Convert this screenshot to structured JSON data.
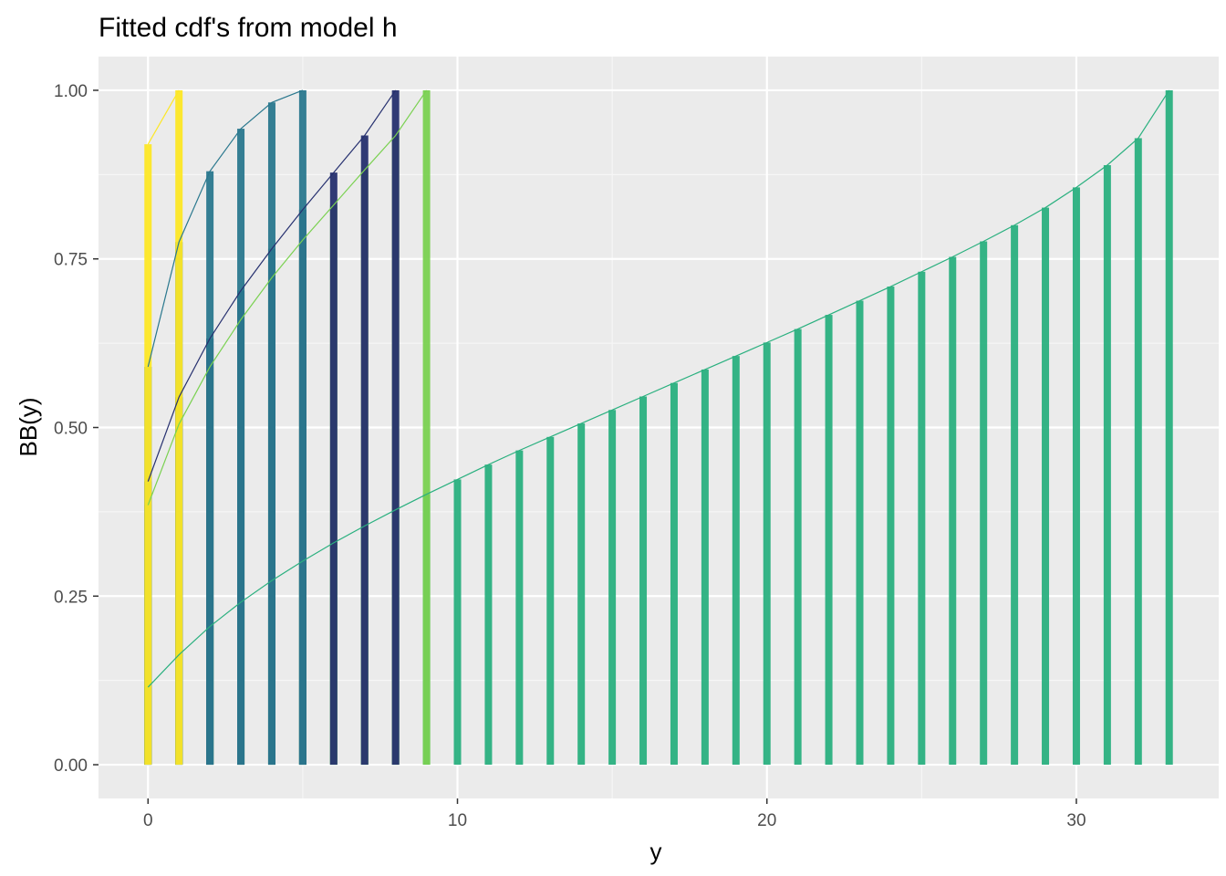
{
  "chart_data": {
    "type": "bar",
    "title": "Fitted cdf's from model h",
    "xlabel": "y",
    "ylabel": "BB(y)",
    "xlim": [
      -1.6,
      34.6
    ],
    "ylim": [
      -0.05,
      1.05
    ],
    "x_ticks": [
      0,
      10,
      20,
      30
    ],
    "y_ticks": [
      0,
      0.25,
      0.5,
      0.75,
      1
    ],
    "x_tick_labels": [
      "0",
      "10",
      "20",
      "30"
    ],
    "y_tick_labels": [
      "0.00",
      "0.25",
      "0.50",
      "0.75",
      "1.00"
    ],
    "grid": true,
    "legend": "none",
    "series": [
      {
        "color": "#2ab07f",
        "x": [
          0,
          1,
          2,
          3,
          4,
          5,
          6,
          7,
          8,
          9,
          10,
          11,
          12,
          13,
          14,
          15,
          16,
          17,
          18,
          19,
          20,
          21,
          22,
          23,
          24,
          25,
          26,
          27,
          28,
          29,
          30,
          31,
          32,
          33
        ],
        "values": [
          0.115,
          0.163,
          0.205,
          0.241,
          0.273,
          0.302,
          0.329,
          0.354,
          0.378,
          0.401,
          0.423,
          0.445,
          0.466,
          0.486,
          0.506,
          0.526,
          0.546,
          0.566,
          0.586,
          0.606,
          0.626,
          0.646,
          0.667,
          0.688,
          0.709,
          0.731,
          0.753,
          0.776,
          0.8,
          0.826,
          0.856,
          0.889,
          0.929,
          1.0
        ]
      },
      {
        "color": "#7ad151",
        "x": [
          0,
          1,
          2,
          3,
          4,
          5,
          6,
          7,
          8,
          9
        ],
        "values": [
          0.385,
          0.505,
          0.59,
          0.66,
          0.722,
          0.778,
          0.83,
          0.882,
          0.933,
          1.0
        ]
      },
      {
        "color": "#26306f",
        "x": [
          0,
          1,
          2,
          3,
          4,
          5,
          6,
          7,
          8
        ],
        "values": [
          0.42,
          0.545,
          0.632,
          0.703,
          0.765,
          0.823,
          0.878,
          0.933,
          1.0
        ]
      },
      {
        "color": "#2a788e",
        "x": [
          0,
          1,
          2,
          3,
          4,
          5
        ],
        "values": [
          0.59,
          0.775,
          0.88,
          0.943,
          0.982,
          1.0
        ]
      },
      {
        "color": "#fde725",
        "x": [
          0,
          1
        ],
        "values": [
          0.92,
          1.0
        ]
      }
    ]
  }
}
